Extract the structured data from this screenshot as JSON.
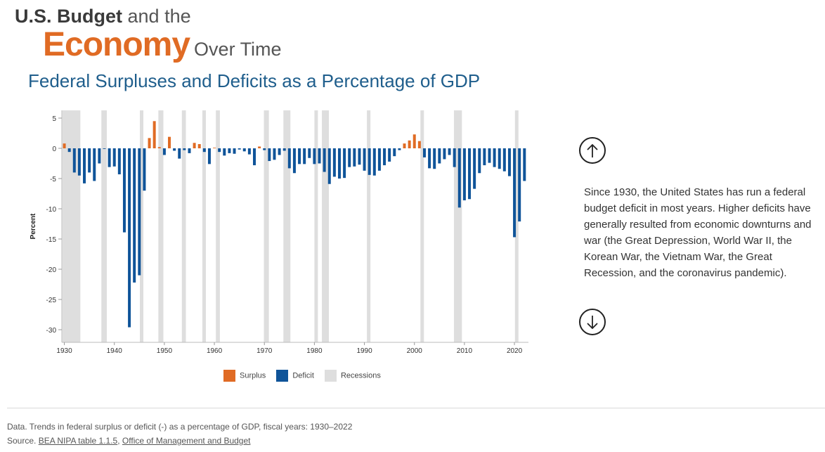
{
  "header": {
    "title_bold": "U.S. Budget",
    "title_rest": "and the",
    "title_econ": "Economy",
    "title_over": "Over Time"
  },
  "chart_data": {
    "type": "bar",
    "title": "Federal Surpluses and Deficits as a Percentage of GDP",
    "ylabel": "Percent",
    "xlabel": "",
    "ylim": [
      -31,
      6
    ],
    "y_ticks": [
      5,
      0,
      -5,
      -10,
      -15,
      -20,
      -25,
      -30
    ],
    "x_ticks": [
      1930,
      1940,
      1950,
      1960,
      1970,
      1980,
      1990,
      2000,
      2010,
      2020
    ],
    "grid": false,
    "legend_position": "bottom",
    "legend": [
      "Surplus",
      "Deficit",
      "Recessions"
    ],
    "colors": {
      "surplus": "#e06b24",
      "deficit": "#0f5499",
      "recession": "#dedede"
    },
    "years": [
      1930,
      1931,
      1932,
      1933,
      1934,
      1935,
      1936,
      1937,
      1938,
      1939,
      1940,
      1941,
      1942,
      1943,
      1944,
      1945,
      1946,
      1947,
      1948,
      1949,
      1950,
      1951,
      1952,
      1953,
      1954,
      1955,
      1956,
      1957,
      1958,
      1959,
      1960,
      1961,
      1962,
      1963,
      1964,
      1965,
      1966,
      1967,
      1968,
      1969,
      1970,
      1971,
      1972,
      1973,
      1974,
      1975,
      1976,
      1977,
      1978,
      1979,
      1980,
      1981,
      1982,
      1983,
      1984,
      1985,
      1986,
      1987,
      1988,
      1989,
      1990,
      1991,
      1992,
      1993,
      1994,
      1995,
      1996,
      1997,
      1998,
      1999,
      2000,
      2001,
      2002,
      2003,
      2004,
      2005,
      2006,
      2007,
      2008,
      2009,
      2010,
      2011,
      2012,
      2013,
      2014,
      2015,
      2016,
      2017,
      2018,
      2019,
      2020,
      2021,
      2022
    ],
    "values": [
      0.8,
      -0.6,
      -4.0,
      -4.5,
      -5.8,
      -4.0,
      -5.4,
      -2.5,
      -0.1,
      -3.1,
      -3.0,
      -4.3,
      -13.9,
      -29.6,
      -22.2,
      -21.0,
      -7.0,
      1.7,
      4.5,
      0.2,
      -1.1,
      1.9,
      -0.4,
      -1.7,
      -0.3,
      -0.8,
      0.9,
      0.7,
      -0.6,
      -2.6,
      0.1,
      -0.6,
      -1.2,
      -0.8,
      -0.9,
      -0.2,
      -0.5,
      -1.0,
      -2.8,
      0.3,
      -0.3,
      -2.1,
      -1.9,
      -1.1,
      -0.4,
      -3.3,
      -4.1,
      -2.6,
      -2.6,
      -1.6,
      -2.6,
      -2.5,
      -3.9,
      -5.9,
      -4.7,
      -5.0,
      -4.9,
      -3.1,
      -3.0,
      -2.7,
      -3.7,
      -4.4,
      -4.5,
      -3.7,
      -2.8,
      -2.2,
      -1.3,
      -0.3,
      0.8,
      1.3,
      2.3,
      1.2,
      -1.5,
      -3.3,
      -3.4,
      -2.5,
      -1.8,
      -1.1,
      -3.1,
      -9.8,
      -8.6,
      -8.4,
      -6.7,
      -4.1,
      -2.8,
      -2.4,
      -3.1,
      -3.4,
      -3.8,
      -4.6,
      -14.7,
      -12.1,
      -5.4
    ],
    "recessions": [
      [
        1929.6,
        1933.2
      ],
      [
        1937.4,
        1938.5
      ],
      [
        1945.1,
        1945.8
      ],
      [
        1948.8,
        1949.8
      ],
      [
        1953.5,
        1954.3
      ],
      [
        1957.6,
        1958.3
      ],
      [
        1960.3,
        1961.1
      ],
      [
        1969.9,
        1970.9
      ],
      [
        1973.8,
        1975.2
      ],
      [
        1980.0,
        1980.5
      ],
      [
        1981.5,
        1982.9
      ],
      [
        1990.5,
        1991.2
      ],
      [
        2001.2,
        2001.9
      ],
      [
        2007.9,
        2009.5
      ],
      [
        2020.1,
        2020.3
      ]
    ]
  },
  "legend_labels": {
    "surplus": "Surplus",
    "deficit": "Deficit",
    "recessions": "Recessions"
  },
  "description": "Since 1930, the United States has run a federal budget deficit in most years. Higher deficits have generally resulted from economic downturns and war (the Great Depression, World War II, the Korean War, the Vietnam War, the Great Recession, and the coronavirus pandemic).",
  "footer": {
    "data_line": "Data. Trends in federal surplus or deficit (-) as a percentage of GDP, fiscal years: 1930–2022",
    "source_prefix": "Source.",
    "source_link1": "BEA NIPA table 1.1.5",
    "source_sep": ",",
    "source_link2": "Office of Management and Budget"
  }
}
